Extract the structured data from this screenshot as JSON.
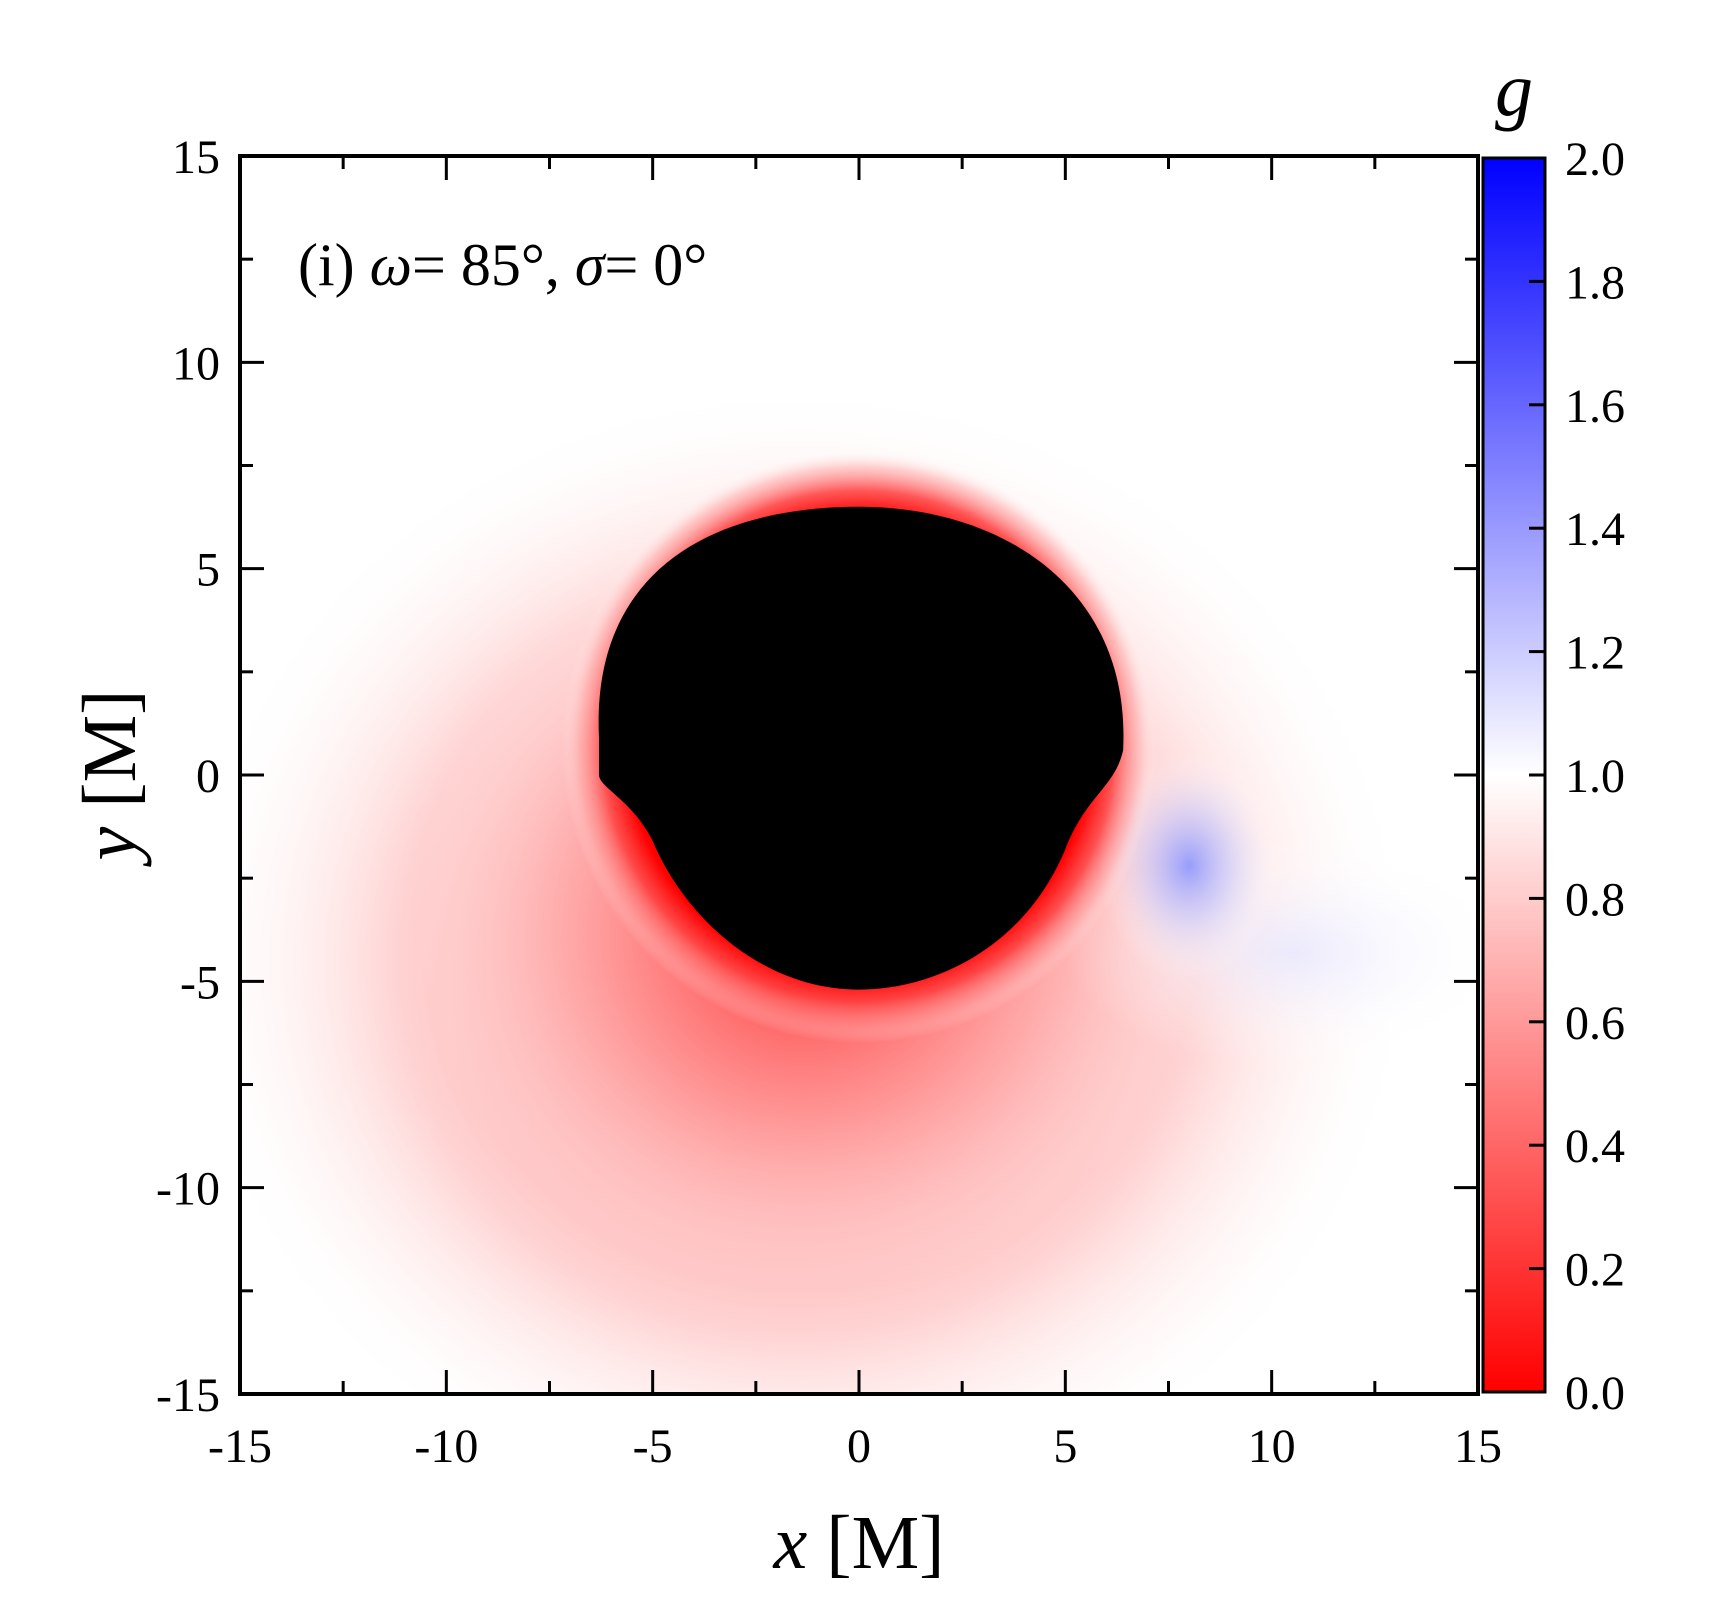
{
  "chart_data": {
    "type": "heatmap",
    "annotation": {
      "prefix": "(i) ",
      "omega_symbol": "ω",
      "omega_value": "= 85°, ",
      "sigma_symbol": "σ",
      "sigma_value": "= 0°"
    },
    "xlabel": {
      "var": "x",
      "unit": " [M]"
    },
    "ylabel": {
      "var": "y",
      "unit": " [M]"
    },
    "xlim": [
      -15,
      15
    ],
    "ylim": [
      -15,
      15
    ],
    "x_ticks": [
      -15,
      -10,
      -5,
      0,
      5,
      10,
      15
    ],
    "y_ticks": [
      -15,
      -10,
      -5,
      0,
      5,
      10,
      15
    ],
    "x_tick_labels": [
      "-15",
      "-10",
      "-5",
      "0",
      "5",
      "10",
      "15"
    ],
    "y_tick_labels": [
      "-15",
      "-10",
      "-5",
      "0",
      "5",
      "10",
      "15"
    ],
    "shadow": {
      "color": "#000000",
      "center": [
        0,
        0.7
      ],
      "radius": 5.8,
      "top_y": 6.5,
      "bottom_y": -5.2,
      "left_x": -6.3,
      "right_x": 6.4
    },
    "colorbar": {
      "title": "g",
      "range": [
        0,
        2
      ],
      "ticks": [
        "0.0",
        "0.2",
        "0.4",
        "0.6",
        "0.8",
        "1.0",
        "1.2",
        "1.4",
        "1.6",
        "1.8",
        "2.0"
      ],
      "tick_values": [
        0,
        0.2,
        0.4,
        0.6,
        0.8,
        1.0,
        1.2,
        1.4,
        1.6,
        1.8,
        2.0
      ],
      "color_low": "#ff0000",
      "color_mid": "#ffffff",
      "color_high": "#0000ff"
    },
    "regions": [
      {
        "name": "inner red ring",
        "g_approx": 0.0
      },
      {
        "name": "lower-left glow",
        "g_approx": 0.7
      },
      {
        "name": "blue lobe (right)",
        "g_approx": 1.3
      },
      {
        "name": "far field",
        "g_approx": 1.0
      }
    ]
  }
}
